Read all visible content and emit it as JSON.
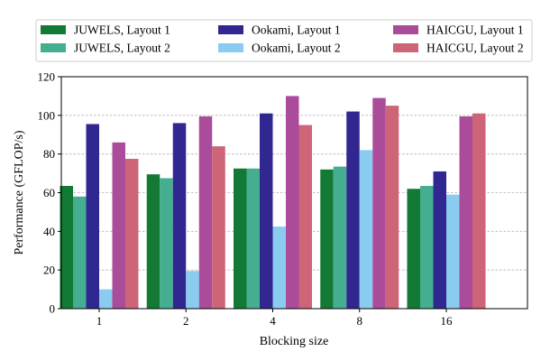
{
  "chart_data": {
    "type": "bar",
    "categories": [
      "1",
      "2",
      "4",
      "8",
      "16"
    ],
    "series": [
      {
        "name": "JUWELS, Layout 1",
        "color": "#127a35",
        "values": [
          63.5,
          69.5,
          72.5,
          72.0,
          62.0
        ]
      },
      {
        "name": "JUWELS, Layout 2",
        "color": "#45ae91",
        "values": [
          58.0,
          67.5,
          72.5,
          73.5,
          63.5
        ]
      },
      {
        "name": "Ookami, Layout 1",
        "color": "#302790",
        "values": [
          95.5,
          96.0,
          101.0,
          102.0,
          71.0
        ]
      },
      {
        "name": "Ookami, Layout 2",
        "color": "#8acbf0",
        "values": [
          10.0,
          19.5,
          42.5,
          82.0,
          59.0
        ]
      },
      {
        "name": "HAICGU, Layout 1",
        "color": "#ab4c9b",
        "values": [
          86.0,
          99.5,
          110.0,
          109.0,
          99.5
        ]
      },
      {
        "name": "HAICGU, Layout 2",
        "color": "#cd6478",
        "values": [
          77.5,
          84.0,
          95.0,
          105.0,
          101.0
        ]
      }
    ],
    "xlabel": "Blocking size",
    "ylabel": "Performance (GFLOP/s)",
    "ylim": [
      0,
      120
    ],
    "yticks": [
      0,
      20,
      40,
      60,
      80,
      100,
      120
    ],
    "grid": "horizontal dashed",
    "legend_position": "top, outside plot, 3 columns"
  }
}
